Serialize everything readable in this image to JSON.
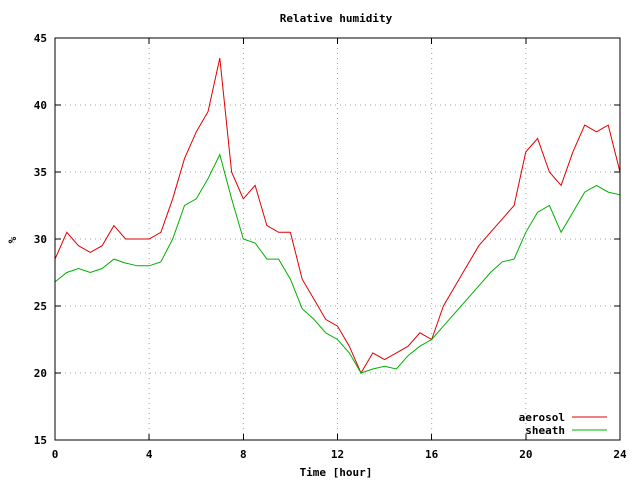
{
  "chart_data": {
    "type": "line",
    "title": "Relative humidity",
    "xlabel": "Time [hour]",
    "ylabel": "%",
    "xlim": [
      0,
      24
    ],
    "ylim": [
      15,
      45
    ],
    "grid": true,
    "legend_position": "bottom-right",
    "x_ticks": [
      "0",
      "4",
      "8",
      "12",
      "16",
      "20",
      "24"
    ],
    "y_ticks": [
      "15",
      "20",
      "25",
      "30",
      "35",
      "40",
      "45"
    ],
    "x": [
      0,
      0.5,
      1,
      1.5,
      2,
      2.5,
      3,
      3.5,
      4,
      4.5,
      5,
      5.5,
      6,
      6.5,
      7,
      7.5,
      8,
      8.5,
      9,
      9.5,
      10,
      10.5,
      11,
      11.5,
      12,
      12.5,
      13,
      13.5,
      14,
      14.5,
      15,
      15.5,
      16,
      16.5,
      17,
      17.5,
      18,
      18.5,
      19,
      19.5,
      20,
      20.5,
      21,
      21.5,
      22,
      22.5,
      23,
      23.5,
      24
    ],
    "series": [
      {
        "name": "aerosol",
        "color": "#e00000",
        "values": [
          28.5,
          30.5,
          29.5,
          29.0,
          29.5,
          31.0,
          30.0,
          30.0,
          30.0,
          30.5,
          33.0,
          36.0,
          38.0,
          39.5,
          43.5,
          35.0,
          33.0,
          34.0,
          31.0,
          30.5,
          30.5,
          27.0,
          25.5,
          24.0,
          23.5,
          22.0,
          20.0,
          21.5,
          21.0,
          21.5,
          22.0,
          23.0,
          22.5,
          25.0,
          26.5,
          28.0,
          29.5,
          30.5,
          31.5,
          32.5,
          36.5,
          37.5,
          35.0,
          34.0,
          36.5,
          38.5,
          38.0,
          38.5,
          35.0
        ]
      },
      {
        "name": "sheath",
        "color": "#00b000",
        "values": [
          26.8,
          27.5,
          27.8,
          27.5,
          27.8,
          28.5,
          28.2,
          28.0,
          28.0,
          28.3,
          30.0,
          32.5,
          33.0,
          34.5,
          36.3,
          33.0,
          30.0,
          29.7,
          28.5,
          28.5,
          27.0,
          24.8,
          24.0,
          23.0,
          22.5,
          21.5,
          20.0,
          20.3,
          20.5,
          20.3,
          21.3,
          22.0,
          22.5,
          23.5,
          24.5,
          25.5,
          26.5,
          27.5,
          28.3,
          28.5,
          30.5,
          32.0,
          32.5,
          30.5,
          32.0,
          33.5,
          34.0,
          33.5,
          33.3
        ]
      }
    ]
  }
}
